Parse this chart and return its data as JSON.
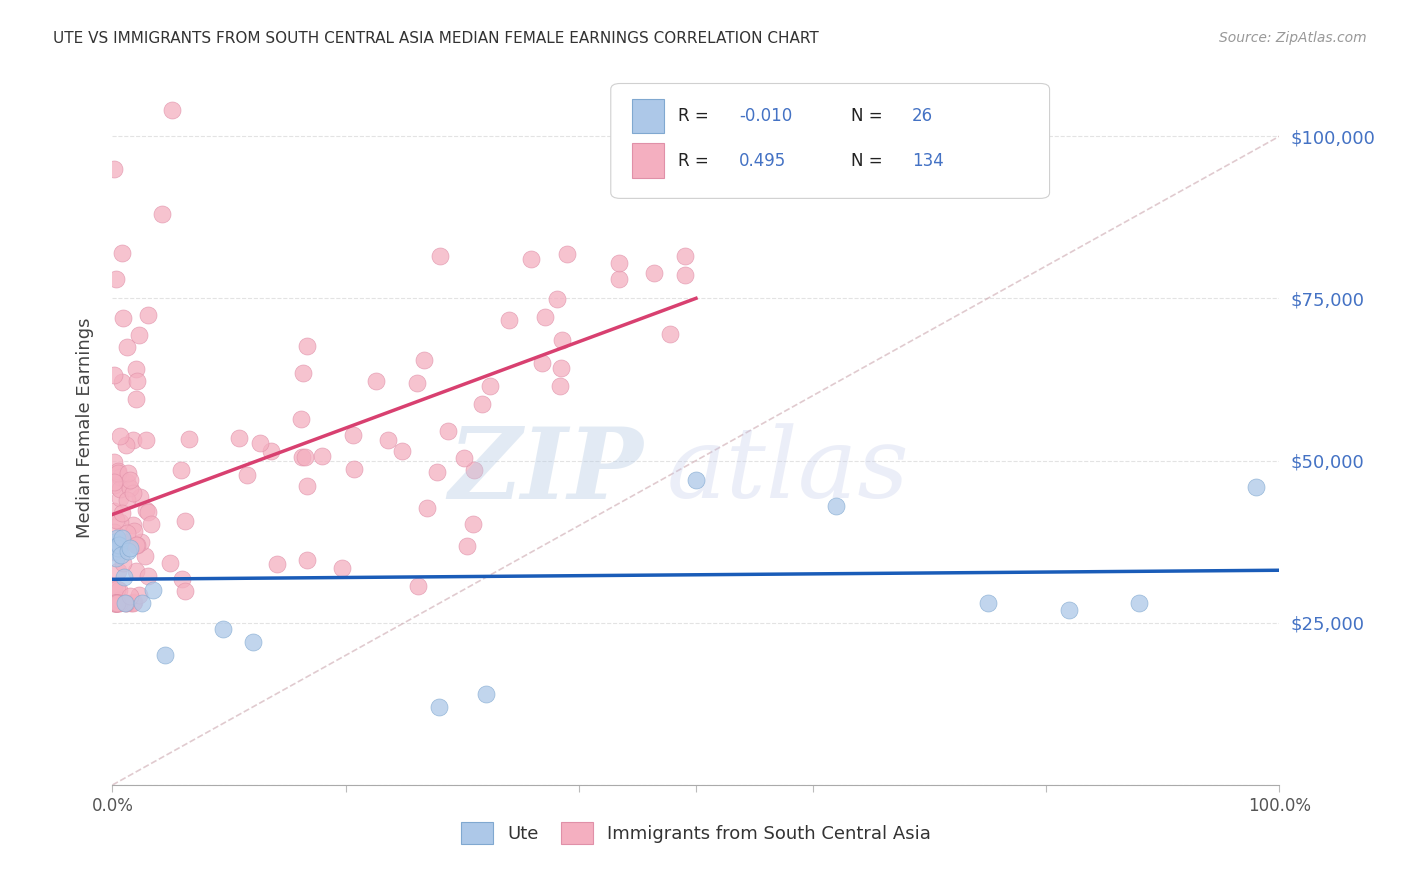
{
  "title": "UTE VS IMMIGRANTS FROM SOUTH CENTRAL ASIA MEDIAN FEMALE EARNINGS CORRELATION CHART",
  "source": "Source: ZipAtlas.com",
  "ylabel": "Median Female Earnings",
  "ute_R": -0.01,
  "ute_N": 26,
  "immigrants_R": 0.495,
  "immigrants_N": 134,
  "ute_color": "#adc8e8",
  "ute_line_color": "#1a5cb8",
  "immigrants_color": "#f4afc0",
  "immigrants_line_color": "#d84070",
  "ref_line_color": "#c8a0a8",
  "grid_color": "#cccccc",
  "title_color": "#333333",
  "source_color": "#999999",
  "axis_label_color": "#4472c4",
  "background_color": "#ffffff",
  "xlim": [
    0,
    1.0
  ],
  "ylim": [
    0,
    110000
  ],
  "yticks": [
    0,
    25000,
    50000,
    75000,
    100000
  ],
  "ute_line_y": 37000,
  "imm_line_x0": 0.0,
  "imm_line_y0": 35000,
  "imm_line_x1": 1.0,
  "imm_line_y1": 80000
}
